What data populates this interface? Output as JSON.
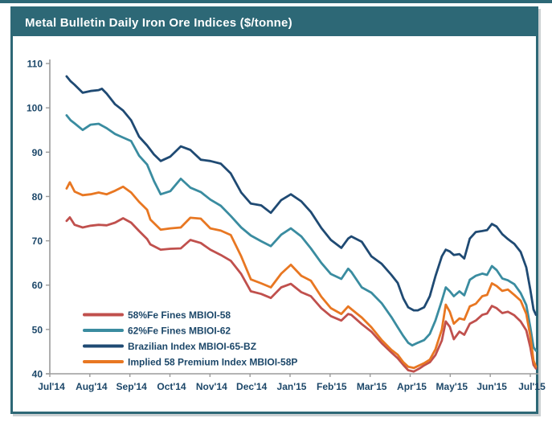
{
  "page": {
    "top_strip_color": "#2d6876"
  },
  "panel": {
    "title": "Metal Bulletin Daily Iron Ore Indices ($/tonne)",
    "title_bg": "#2d6876",
    "title_color": "#ffffff",
    "border_color": "#2d6876"
  },
  "chart_data": {
    "type": "line",
    "title": "Metal Bulletin Daily Iron Ore Indices ($/tonne)",
    "x_unit": "months from Jul 2014",
    "x_tick_labels": [
      "Jul'14",
      "Aug'14",
      "Sep'14",
      "Oct'14",
      "Nov'14",
      "Dec'14",
      "Jan'15",
      "Feb'15",
      "Mar'15",
      "Apr'15",
      "May'15",
      "Jun'15",
      "Jul'15"
    ],
    "y_ticks": [
      40,
      50,
      60,
      70,
      80,
      90,
      100,
      110
    ],
    "ylim": [
      40,
      110
    ],
    "xlim_months": [
      0,
      12.2
    ],
    "grid": "off",
    "axis_color": "#9b9b9b",
    "label_color": "#1c4769",
    "legend_position": "inside-bottom-left",
    "series": [
      {
        "name": "58%Fe Fines MBIOI-58",
        "color": "#c0504d",
        "points": [
          [
            0.42,
            74.5
          ],
          [
            0.5,
            75.3
          ],
          [
            0.62,
            73.6
          ],
          [
            0.82,
            73.0
          ],
          [
            1.02,
            73.4
          ],
          [
            1.22,
            73.6
          ],
          [
            1.42,
            73.5
          ],
          [
            1.63,
            74.1
          ],
          [
            1.83,
            75.1
          ],
          [
            2.03,
            74.1
          ],
          [
            2.23,
            72.2
          ],
          [
            2.43,
            70.4
          ],
          [
            2.51,
            69.2
          ],
          [
            2.77,
            68.0
          ],
          [
            3.01,
            68.2
          ],
          [
            3.27,
            68.3
          ],
          [
            3.51,
            70.2
          ],
          [
            3.77,
            69.5
          ],
          [
            4.01,
            68.0
          ],
          [
            4.27,
            66.8
          ],
          [
            4.52,
            65.5
          ],
          [
            4.78,
            62.5
          ],
          [
            5.02,
            58.6
          ],
          [
            5.28,
            58.0
          ],
          [
            5.52,
            57.1
          ],
          [
            5.78,
            59.5
          ],
          [
            6.02,
            60.3
          ],
          [
            6.28,
            58.4
          ],
          [
            6.52,
            57.5
          ],
          [
            6.78,
            54.8
          ],
          [
            7.02,
            53.0
          ],
          [
            7.28,
            52.0
          ],
          [
            7.45,
            53.5
          ],
          [
            7.53,
            53.3
          ],
          [
            7.79,
            51.2
          ],
          [
            8.03,
            49.5
          ],
          [
            8.29,
            46.9
          ],
          [
            8.53,
            44.8
          ],
          [
            8.69,
            43.5
          ],
          [
            8.83,
            42.0
          ],
          [
            8.95,
            40.8
          ],
          [
            9.09,
            40.5
          ],
          [
            9.23,
            41.2
          ],
          [
            9.35,
            41.9
          ],
          [
            9.49,
            42.6
          ],
          [
            9.63,
            44.2
          ],
          [
            9.79,
            47.5
          ],
          [
            9.89,
            51.8
          ],
          [
            9.99,
            50.6
          ],
          [
            10.09,
            47.8
          ],
          [
            10.23,
            49.5
          ],
          [
            10.35,
            48.8
          ],
          [
            10.49,
            51.3
          ],
          [
            10.64,
            52.0
          ],
          [
            10.8,
            53.3
          ],
          [
            10.92,
            53.6
          ],
          [
            11.04,
            55.3
          ],
          [
            11.16,
            54.8
          ],
          [
            11.3,
            53.7
          ],
          [
            11.44,
            54.0
          ],
          [
            11.6,
            53.2
          ],
          [
            11.76,
            51.8
          ],
          [
            11.9,
            49.8
          ],
          [
            12.0,
            46.0
          ],
          [
            12.08,
            42.0
          ],
          [
            12.14,
            41.2
          ]
        ]
      },
      {
        "name": "62%Fe Fines MBIOI-62",
        "color": "#3a8ca0",
        "points": [
          [
            0.42,
            98.3
          ],
          [
            0.52,
            97.2
          ],
          [
            0.62,
            96.5
          ],
          [
            0.82,
            95.0
          ],
          [
            1.02,
            96.2
          ],
          [
            1.22,
            96.4
          ],
          [
            1.42,
            95.4
          ],
          [
            1.63,
            94.1
          ],
          [
            1.83,
            93.3
          ],
          [
            2.03,
            92.5
          ],
          [
            2.23,
            89.2
          ],
          [
            2.43,
            87.2
          ],
          [
            2.6,
            83.5
          ],
          [
            2.77,
            80.5
          ],
          [
            3.01,
            81.2
          ],
          [
            3.27,
            84.0
          ],
          [
            3.51,
            82.0
          ],
          [
            3.77,
            81.0
          ],
          [
            4.01,
            79.3
          ],
          [
            4.27,
            77.9
          ],
          [
            4.52,
            75.6
          ],
          [
            4.78,
            73.0
          ],
          [
            5.02,
            71.2
          ],
          [
            5.28,
            69.9
          ],
          [
            5.52,
            68.8
          ],
          [
            5.78,
            71.4
          ],
          [
            6.02,
            72.8
          ],
          [
            6.28,
            71.0
          ],
          [
            6.52,
            68.3
          ],
          [
            6.78,
            65.0
          ],
          [
            7.02,
            62.5
          ],
          [
            7.28,
            61.4
          ],
          [
            7.45,
            63.7
          ],
          [
            7.53,
            63.0
          ],
          [
            7.79,
            59.5
          ],
          [
            8.03,
            58.3
          ],
          [
            8.29,
            55.9
          ],
          [
            8.53,
            52.8
          ],
          [
            8.69,
            50.5
          ],
          [
            8.83,
            48.5
          ],
          [
            8.95,
            47.0
          ],
          [
            9.05,
            46.4
          ],
          [
            9.19,
            47.0
          ],
          [
            9.35,
            47.6
          ],
          [
            9.49,
            49.0
          ],
          [
            9.63,
            52.0
          ],
          [
            9.79,
            56.5
          ],
          [
            9.89,
            59.5
          ],
          [
            9.99,
            58.6
          ],
          [
            10.09,
            57.5
          ],
          [
            10.23,
            58.6
          ],
          [
            10.35,
            57.7
          ],
          [
            10.49,
            61.2
          ],
          [
            10.64,
            62.1
          ],
          [
            10.8,
            62.6
          ],
          [
            10.92,
            62.3
          ],
          [
            11.04,
            64.3
          ],
          [
            11.16,
            63.4
          ],
          [
            11.3,
            61.5
          ],
          [
            11.44,
            61.1
          ],
          [
            11.6,
            60.2
          ],
          [
            11.76,
            58.2
          ],
          [
            11.9,
            55.5
          ],
          [
            12.0,
            50.5
          ],
          [
            12.08,
            46.0
          ],
          [
            12.14,
            45.2
          ]
        ]
      },
      {
        "name": "Brazilian Index MBIOI-65-BZ",
        "color": "#1f4a73",
        "points": [
          [
            0.42,
            107.1
          ],
          [
            0.52,
            106.0
          ],
          [
            0.62,
            105.2
          ],
          [
            0.82,
            103.4
          ],
          [
            1.02,
            103.8
          ],
          [
            1.22,
            104.0
          ],
          [
            1.3,
            104.3
          ],
          [
            1.42,
            103.2
          ],
          [
            1.63,
            100.8
          ],
          [
            1.83,
            99.4
          ],
          [
            2.03,
            97.2
          ],
          [
            2.23,
            93.5
          ],
          [
            2.43,
            91.5
          ],
          [
            2.6,
            89.5
          ],
          [
            2.77,
            88.0
          ],
          [
            3.01,
            89.0
          ],
          [
            3.27,
            91.3
          ],
          [
            3.51,
            90.5
          ],
          [
            3.77,
            88.3
          ],
          [
            4.01,
            88.0
          ],
          [
            4.27,
            87.4
          ],
          [
            4.52,
            85.2
          ],
          [
            4.78,
            80.9
          ],
          [
            5.02,
            78.4
          ],
          [
            5.28,
            78.0
          ],
          [
            5.52,
            76.3
          ],
          [
            5.78,
            79.2
          ],
          [
            6.02,
            80.5
          ],
          [
            6.28,
            78.9
          ],
          [
            6.52,
            76.5
          ],
          [
            6.78,
            72.9
          ],
          [
            7.02,
            70.2
          ],
          [
            7.28,
            68.4
          ],
          [
            7.45,
            70.5
          ],
          [
            7.53,
            71.0
          ],
          [
            7.79,
            69.8
          ],
          [
            8.03,
            66.5
          ],
          [
            8.29,
            64.8
          ],
          [
            8.53,
            62.3
          ],
          [
            8.69,
            60.5
          ],
          [
            8.83,
            57.0
          ],
          [
            8.95,
            55.0
          ],
          [
            9.09,
            54.3
          ],
          [
            9.19,
            54.3
          ],
          [
            9.35,
            55.0
          ],
          [
            9.49,
            57.5
          ],
          [
            9.63,
            62.0
          ],
          [
            9.79,
            66.5
          ],
          [
            9.89,
            68.0
          ],
          [
            9.99,
            67.6
          ],
          [
            10.09,
            66.8
          ],
          [
            10.23,
            67.0
          ],
          [
            10.35,
            66.0
          ],
          [
            10.49,
            70.5
          ],
          [
            10.64,
            72.0
          ],
          [
            10.8,
            72.2
          ],
          [
            10.92,
            72.4
          ],
          [
            11.04,
            73.8
          ],
          [
            11.16,
            73.2
          ],
          [
            11.3,
            71.5
          ],
          [
            11.44,
            70.4
          ],
          [
            11.6,
            69.3
          ],
          [
            11.76,
            67.5
          ],
          [
            11.9,
            64.0
          ],
          [
            12.0,
            59.0
          ],
          [
            12.08,
            54.5
          ],
          [
            12.14,
            53.3
          ]
        ]
      },
      {
        "name": "Implied 58 Premium Index MBIOI-58P",
        "color": "#e87722",
        "points": [
          [
            0.42,
            81.8
          ],
          [
            0.5,
            83.2
          ],
          [
            0.62,
            81.1
          ],
          [
            0.82,
            80.3
          ],
          [
            1.02,
            80.5
          ],
          [
            1.22,
            80.9
          ],
          [
            1.42,
            80.5
          ],
          [
            1.63,
            81.3
          ],
          [
            1.83,
            82.2
          ],
          [
            2.03,
            80.9
          ],
          [
            2.23,
            78.8
          ],
          [
            2.43,
            77.0
          ],
          [
            2.51,
            74.8
          ],
          [
            2.77,
            72.5
          ],
          [
            3.01,
            72.8
          ],
          [
            3.27,
            73.0
          ],
          [
            3.51,
            75.2
          ],
          [
            3.77,
            75.0
          ],
          [
            4.01,
            72.8
          ],
          [
            4.27,
            72.3
          ],
          [
            4.52,
            71.3
          ],
          [
            4.78,
            66.5
          ],
          [
            5.02,
            61.3
          ],
          [
            5.28,
            60.4
          ],
          [
            5.52,
            59.5
          ],
          [
            5.78,
            62.6
          ],
          [
            6.02,
            64.6
          ],
          [
            6.28,
            62.1
          ],
          [
            6.52,
            61.0
          ],
          [
            6.78,
            57.4
          ],
          [
            7.02,
            54.8
          ],
          [
            7.28,
            53.5
          ],
          [
            7.45,
            55.2
          ],
          [
            7.53,
            54.6
          ],
          [
            7.79,
            52.7
          ],
          [
            8.03,
            50.5
          ],
          [
            8.29,
            47.6
          ],
          [
            8.53,
            45.4
          ],
          [
            8.69,
            44.3
          ],
          [
            8.83,
            42.6
          ],
          [
            8.95,
            41.6
          ],
          [
            9.09,
            41.3
          ],
          [
            9.23,
            41.9
          ],
          [
            9.35,
            42.4
          ],
          [
            9.49,
            43.2
          ],
          [
            9.63,
            45.5
          ],
          [
            9.79,
            50.0
          ],
          [
            9.89,
            55.6
          ],
          [
            9.99,
            54.0
          ],
          [
            10.09,
            51.3
          ],
          [
            10.23,
            52.5
          ],
          [
            10.35,
            52.2
          ],
          [
            10.49,
            55.2
          ],
          [
            10.64,
            55.8
          ],
          [
            10.8,
            57.5
          ],
          [
            10.92,
            57.8
          ],
          [
            11.04,
            60.4
          ],
          [
            11.16,
            59.8
          ],
          [
            11.3,
            58.7
          ],
          [
            11.44,
            59.0
          ],
          [
            11.6,
            57.8
          ],
          [
            11.76,
            56.5
          ],
          [
            11.9,
            53.5
          ],
          [
            12.0,
            48.5
          ],
          [
            12.08,
            43.0
          ],
          [
            12.14,
            41.6
          ]
        ]
      }
    ]
  }
}
